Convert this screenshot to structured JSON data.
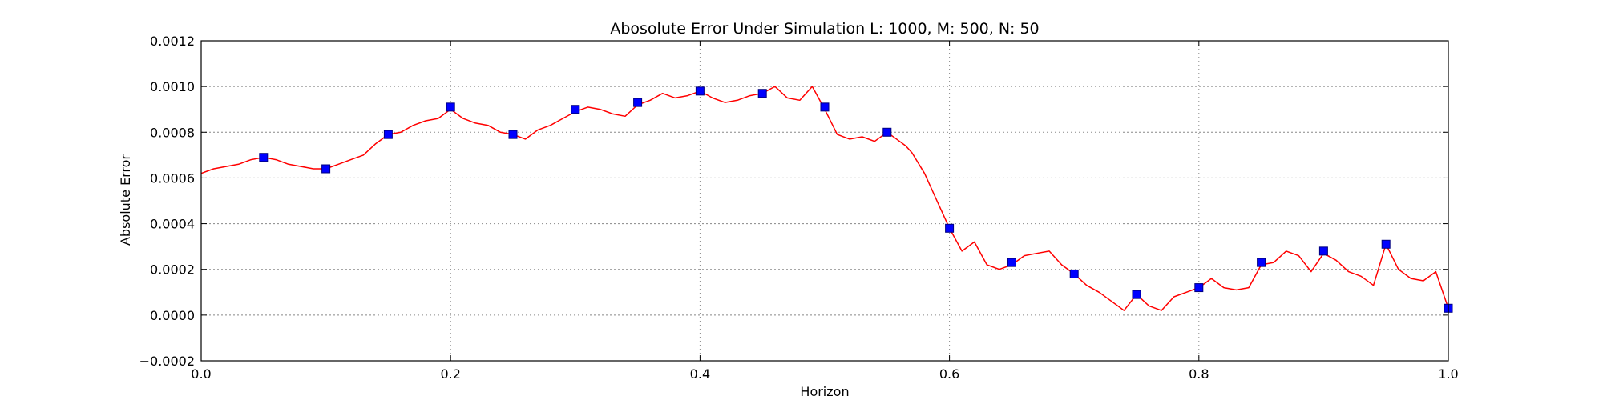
{
  "chart_data": {
    "type": "line",
    "title": "Abosolute Error Under Simulation L: 1000, M: 500, N: 50",
    "xlabel": "Horizon",
    "ylabel": "Absolute Error",
    "xlim": [
      0.0,
      1.0
    ],
    "ylim": [
      -0.0002,
      0.0012
    ],
    "x_ticks": [
      0.0,
      0.2,
      0.4,
      0.6,
      0.8,
      1.0
    ],
    "x_tick_labels": [
      "0.0",
      "0.2",
      "0.4",
      "0.6",
      "0.8",
      "1.0"
    ],
    "y_ticks": [
      -0.0002,
      0.0,
      0.0002,
      0.0004,
      0.0006,
      0.0008,
      0.001,
      0.0012
    ],
    "y_tick_labels": [
      "−0.0002",
      "0.0000",
      "0.0002",
      "0.0004",
      "0.0006",
      "0.0008",
      "0.0010",
      "0.0012"
    ],
    "grid": true,
    "colors": {
      "line": "#ff0000",
      "marker_fill": "#0000ff",
      "marker_edge": "#000080",
      "grid": "#888888"
    },
    "series": [
      {
        "style": "line",
        "x": [
          0.0,
          0.01,
          0.02,
          0.03,
          0.04,
          0.05,
          0.06,
          0.07,
          0.08,
          0.09,
          0.1,
          0.11,
          0.12,
          0.13,
          0.14,
          0.15,
          0.16,
          0.17,
          0.18,
          0.19,
          0.2,
          0.21,
          0.22,
          0.23,
          0.24,
          0.25,
          0.26,
          0.27,
          0.28,
          0.29,
          0.3,
          0.31,
          0.32,
          0.33,
          0.34,
          0.35,
          0.36,
          0.37,
          0.38,
          0.39,
          0.4,
          0.41,
          0.42,
          0.43,
          0.44,
          0.45,
          0.46,
          0.47,
          0.48,
          0.49,
          0.5,
          0.51,
          0.52,
          0.53,
          0.54,
          0.55,
          0.56,
          0.565,
          0.57,
          0.58,
          0.59,
          0.6,
          0.61,
          0.62,
          0.63,
          0.64,
          0.65,
          0.66,
          0.67,
          0.68,
          0.69,
          0.7,
          0.71,
          0.72,
          0.73,
          0.74,
          0.75,
          0.76,
          0.77,
          0.78,
          0.79,
          0.8,
          0.81,
          0.82,
          0.83,
          0.84,
          0.85,
          0.86,
          0.87,
          0.88,
          0.89,
          0.9,
          0.91,
          0.92,
          0.93,
          0.94,
          0.95,
          0.96,
          0.97,
          0.98,
          0.99,
          1.0
        ],
        "y": [
          0.00062,
          0.00064,
          0.00065,
          0.00066,
          0.00068,
          0.00069,
          0.00068,
          0.00066,
          0.00065,
          0.00064,
          0.00064,
          0.00066,
          0.00068,
          0.0007,
          0.00075,
          0.00079,
          0.0008,
          0.00083,
          0.00085,
          0.00086,
          0.0009,
          0.00086,
          0.00084,
          0.00083,
          0.0008,
          0.00079,
          0.00077,
          0.00081,
          0.00083,
          0.00086,
          0.00089,
          0.00091,
          0.0009,
          0.00088,
          0.00087,
          0.00092,
          0.00094,
          0.00097,
          0.00095,
          0.00096,
          0.00098,
          0.00095,
          0.00093,
          0.00094,
          0.00096,
          0.00097,
          0.001,
          0.00095,
          0.00094,
          0.001,
          0.0009,
          0.00079,
          0.00077,
          0.00078,
          0.00076,
          0.0008,
          0.00076,
          0.00074,
          0.00071,
          0.00062,
          0.0005,
          0.00038,
          0.00028,
          0.00032,
          0.00022,
          0.0002,
          0.00022,
          0.00026,
          0.00027,
          0.00028,
          0.00022,
          0.00018,
          0.00013,
          0.0001,
          6e-05,
          2e-05,
          9e-05,
          4e-05,
          2e-05,
          8e-05,
          0.0001,
          0.00012,
          0.00016,
          0.00012,
          0.00011,
          0.00012,
          0.00022,
          0.00023,
          0.00028,
          0.00026,
          0.00019,
          0.00027,
          0.00024,
          0.00019,
          0.00017,
          0.00013,
          0.00031,
          0.0002,
          0.00016,
          0.00015,
          0.00019,
          3e-05
        ]
      },
      {
        "style": "markers",
        "x": [
          0.05,
          0.1,
          0.15,
          0.2,
          0.25,
          0.3,
          0.35,
          0.4,
          0.45,
          0.5,
          0.55,
          0.6,
          0.65,
          0.7,
          0.75,
          0.8,
          0.85,
          0.9,
          0.95,
          1.0
        ],
        "y": [
          0.00069,
          0.00064,
          0.00079,
          0.00091,
          0.00079,
          0.0009,
          0.00093,
          0.00098,
          0.00097,
          0.00091,
          0.0008,
          0.00038,
          0.00023,
          0.00018,
          9e-05,
          0.00012,
          0.00023,
          0.00028,
          0.00031,
          3e-05
        ]
      }
    ]
  }
}
